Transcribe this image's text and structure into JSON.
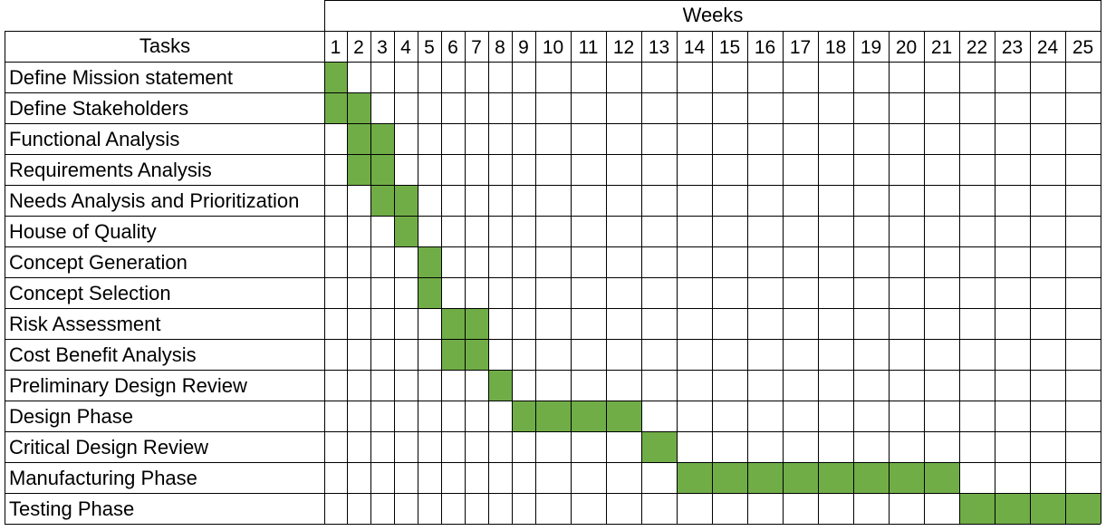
{
  "chart_data": {
    "type": "table",
    "header": {
      "tasks_label": "Tasks",
      "weeks_label": "Weeks"
    },
    "weeks": [
      "1",
      "2",
      "3",
      "4",
      "5",
      "6",
      "7",
      "8",
      "9",
      "10",
      "11",
      "12",
      "13",
      "14",
      "15",
      "16",
      "17",
      "18",
      "19",
      "20",
      "21",
      "22",
      "23",
      "24",
      "25"
    ],
    "fill_color": "#70ad47",
    "grid_color": "#000000",
    "tasks": [
      {
        "name": "Define Mission statement",
        "start_week": 1,
        "end_week": 1
      },
      {
        "name": "Define Stakeholders",
        "start_week": 1,
        "end_week": 2
      },
      {
        "name": "Functional Analysis",
        "start_week": 2,
        "end_week": 3
      },
      {
        "name": "Requirements Analysis",
        "start_week": 2,
        "end_week": 3
      },
      {
        "name": "Needs Analysis and Prioritization",
        "start_week": 3,
        "end_week": 4
      },
      {
        "name": "House of Quality",
        "start_week": 4,
        "end_week": 4
      },
      {
        "name": "Concept Generation",
        "start_week": 5,
        "end_week": 5
      },
      {
        "name": "Concept Selection",
        "start_week": 5,
        "end_week": 5
      },
      {
        "name": "Risk Assessment",
        "start_week": 6,
        "end_week": 7
      },
      {
        "name": "Cost Benefit Analysis",
        "start_week": 6,
        "end_week": 7
      },
      {
        "name": "Preliminary Design Review",
        "start_week": 8,
        "end_week": 8
      },
      {
        "name": "Design Phase",
        "start_week": 9,
        "end_week": 12
      },
      {
        "name": "Critical Design Review",
        "start_week": 13,
        "end_week": 13
      },
      {
        "name": "Manufacturing Phase",
        "start_week": 14,
        "end_week": 21
      },
      {
        "name": "Testing Phase",
        "start_week": 22,
        "end_week": 25
      }
    ]
  }
}
